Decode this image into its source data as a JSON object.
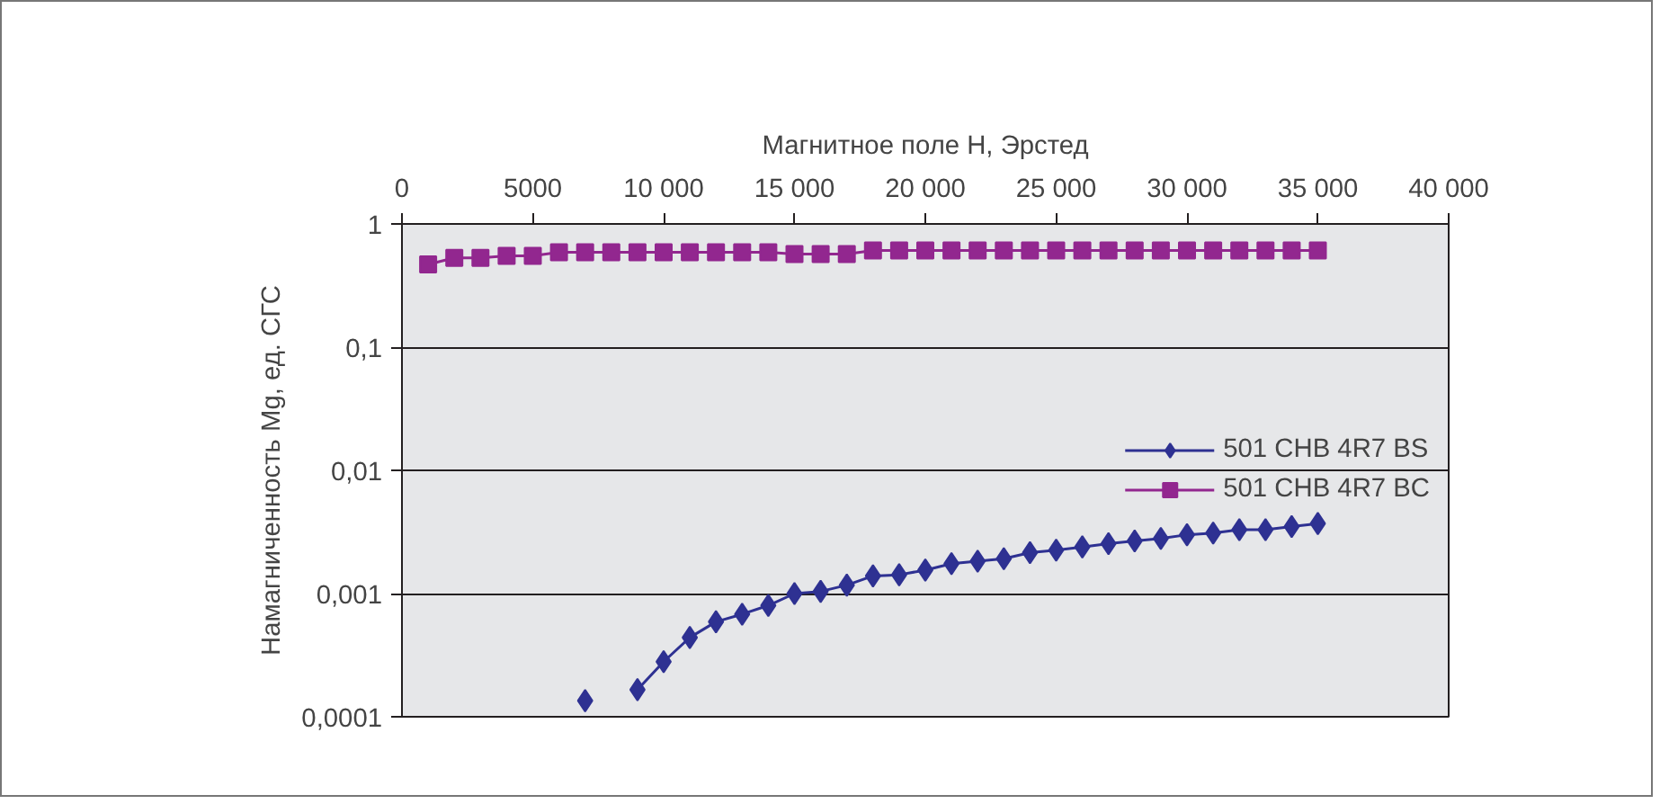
{
  "chart_data": {
    "type": "line",
    "xlabel": "Магнитное поле H, Эрстед",
    "ylabel": "Намагниченность Mg, ед. СГС",
    "log": "y",
    "grid": "y",
    "legend": "right",
    "line_style": "solid",
    "xlim": [
      0,
      40000
    ],
    "xticks": [
      0,
      5000,
      {
        "value": 10000,
        "label": "10 000"
      },
      {
        "value": 15000,
        "label": "15 000"
      },
      {
        "value": 20000,
        "label": "20 000"
      },
      {
        "value": 25000,
        "label": "25 000"
      },
      {
        "value": 30000,
        "label": "30 000"
      },
      {
        "value": 35000,
        "label": "35 000"
      },
      {
        "value": 40000,
        "label": "40 000"
      }
    ],
    "ylim": [
      0.0001,
      1
    ],
    "yticks": [
      {
        "value": 1,
        "label": "1"
      },
      {
        "value": 0.1,
        "label": "0,1"
      },
      {
        "value": 0.01,
        "label": "0,01"
      },
      {
        "value": 0.001,
        "label": "0,001"
      },
      {
        "value": 0.0001,
        "label": "0,0001"
      }
    ],
    "series": [
      {
        "name": "501 CHB 4R7 BS",
        "color": "#2e3192",
        "marker": "diamond",
        "x": [
          7000,
          8000,
          9000,
          10000,
          11000,
          12000,
          13000,
          14000,
          15000,
          16000,
          17000,
          18000,
          19000,
          20000,
          21000,
          22000,
          23000,
          24000,
          25000,
          26000,
          27000,
          28000,
          29000,
          30000,
          31000,
          32000,
          33000,
          34000,
          35000
        ],
        "values": [
          0.000135,
          null,
          0.000166,
          0.00028,
          0.00044,
          0.00059,
          0.00068,
          0.0008,
          0.001,
          0.00104,
          0.00117,
          0.00139,
          0.00142,
          0.00155,
          0.00175,
          0.00183,
          0.00192,
          0.00215,
          0.00225,
          0.00239,
          0.00254,
          0.00267,
          0.0028,
          0.003,
          0.0031,
          0.0033,
          0.0033,
          0.0035,
          0.0037
        ]
      },
      {
        "name": "501 CHB 4R7 BC",
        "color": "#92278f",
        "marker": "square",
        "x": [
          1000,
          2000,
          3000,
          4000,
          5000,
          6000,
          7000,
          8000,
          9000,
          10000,
          11000,
          12000,
          13000,
          14000,
          15000,
          16000,
          17000,
          18000,
          19000,
          20000,
          21000,
          22000,
          23000,
          24000,
          25000,
          26000,
          27000,
          28000,
          29000,
          30000,
          31000,
          32000,
          33000,
          34000,
          35000
        ],
        "values": [
          0.47,
          0.53,
          0.53,
          0.55,
          0.55,
          0.59,
          0.59,
          0.59,
          0.59,
          0.59,
          0.59,
          0.59,
          0.59,
          0.59,
          0.57,
          0.57,
          0.57,
          0.61,
          0.61,
          0.61,
          0.61,
          0.61,
          0.61,
          0.61,
          0.61,
          0.61,
          0.61,
          0.61,
          0.61,
          0.61,
          0.61,
          0.61,
          0.61,
          0.61,
          0.61
        ]
      }
    ]
  }
}
